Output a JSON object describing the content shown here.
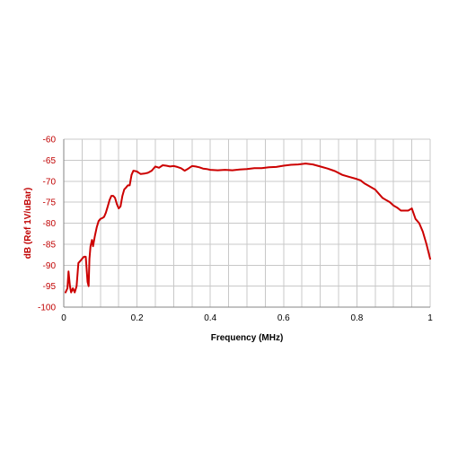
{
  "chart_data": {
    "type": "line",
    "title": "",
    "xlabel": "Frequency (MHz)",
    "ylabel": "dB (Ref 1V/uBar)",
    "xlim": [
      0,
      1
    ],
    "ylim": [
      -100,
      -60
    ],
    "x_ticks": [
      "0",
      "0.2",
      "0.4",
      "0.6",
      "0.8",
      "1"
    ],
    "y_ticks": [
      "-60",
      "-65",
      "-70",
      "-75",
      "-80",
      "-85",
      "-90",
      "-95",
      "-100"
    ],
    "grid": true,
    "legend": "none",
    "colors": {
      "series": "#cc0000",
      "y_axis_text": "#c00000"
    },
    "series": [
      {
        "x": [
          0.005,
          0.01,
          0.013,
          0.017,
          0.02,
          0.025,
          0.03,
          0.035,
          0.04,
          0.045,
          0.05,
          0.055,
          0.06,
          0.065,
          0.068,
          0.07,
          0.073,
          0.077,
          0.08,
          0.085,
          0.09,
          0.095,
          0.1,
          0.105,
          0.11,
          0.115,
          0.12,
          0.125,
          0.13,
          0.135,
          0.14,
          0.145,
          0.15,
          0.155,
          0.16,
          0.165,
          0.17,
          0.175,
          0.18,
          0.185,
          0.19,
          0.195,
          0.2,
          0.205,
          0.21,
          0.22,
          0.23,
          0.24,
          0.25,
          0.26,
          0.27,
          0.28,
          0.29,
          0.3,
          0.31,
          0.32,
          0.33,
          0.34,
          0.35,
          0.36,
          0.37,
          0.38,
          0.39,
          0.4,
          0.42,
          0.44,
          0.46,
          0.48,
          0.5,
          0.52,
          0.54,
          0.56,
          0.58,
          0.6,
          0.62,
          0.64,
          0.66,
          0.68,
          0.7,
          0.72,
          0.74,
          0.76,
          0.78,
          0.8,
          0.81,
          0.82,
          0.83,
          0.84,
          0.85,
          0.86,
          0.87,
          0.88,
          0.89,
          0.9,
          0.91,
          0.92,
          0.93,
          0.94,
          0.95,
          0.96,
          0.97,
          0.98,
          0.99,
          1.0
        ],
        "y": [
          -96.5,
          -95.5,
          -91.5,
          -95.0,
          -96.5,
          -95.5,
          -96.5,
          -95.0,
          -89.5,
          -89.0,
          -88.5,
          -88.0,
          -88.0,
          -94.0,
          -95.0,
          -88.5,
          -85.5,
          -84.0,
          -85.5,
          -83.0,
          -81.0,
          -79.5,
          -79.0,
          -78.8,
          -78.5,
          -77.5,
          -76.0,
          -74.5,
          -73.5,
          -73.5,
          -74.0,
          -75.5,
          -76.5,
          -76.0,
          -73.5,
          -72.0,
          -71.5,
          -71.0,
          -71.0,
          -68.5,
          -67.5,
          -67.6,
          -67.7,
          -68.0,
          -68.3,
          -68.2,
          -68.0,
          -67.5,
          -66.5,
          -66.8,
          -66.2,
          -66.3,
          -66.5,
          -66.4,
          -66.6,
          -66.9,
          -67.5,
          -67.0,
          -66.4,
          -66.5,
          -66.7,
          -67.0,
          -67.1,
          -67.3,
          -67.4,
          -67.3,
          -67.4,
          -67.2,
          -67.1,
          -66.9,
          -66.9,
          -66.7,
          -66.6,
          -66.3,
          -66.1,
          -66.0,
          -65.8,
          -66.0,
          -66.5,
          -67.0,
          -67.6,
          -68.5,
          -69.0,
          -69.5,
          -69.8,
          -70.5,
          -71.0,
          -71.5,
          -72.0,
          -73.0,
          -74.0,
          -74.5,
          -75.0,
          -75.8,
          -76.3,
          -77.0,
          -77.0,
          -77.0,
          -76.5,
          -79.0,
          -80.0,
          -82.0,
          -85.0,
          -88.5
        ]
      }
    ]
  }
}
